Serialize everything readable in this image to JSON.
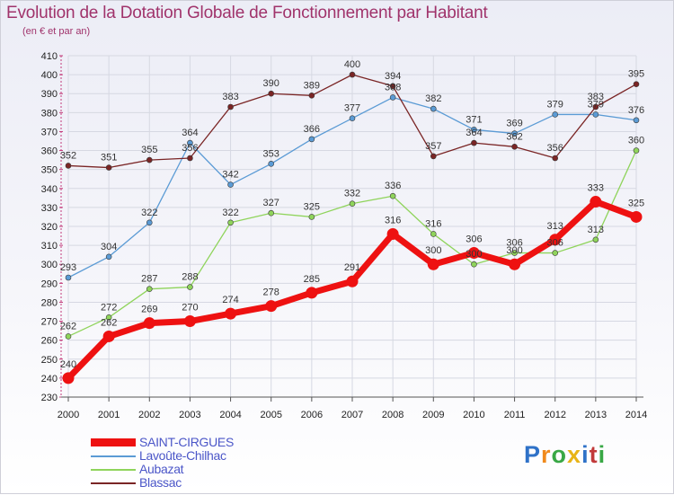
{
  "header": {
    "title": "Evolution de la Dotation Globale de Fonctionnement par Habitant",
    "subtitle": "(en € et par an)"
  },
  "brand": {
    "text": "Proxiti",
    "letter_colors": [
      "#2f72c8",
      "#f08a1c",
      "#39a845",
      "#e8b416",
      "#2f72c8",
      "#c23a3a",
      "#39a845"
    ]
  },
  "chart_data": {
    "type": "line",
    "title": "Evolution de la Dotation Globale de Fonctionnement par Habitant",
    "subtitle": "(en € et par an)",
    "xlabel": "",
    "ylabel": "",
    "x": [
      "2000",
      "2001",
      "2002",
      "2003",
      "2004",
      "2005",
      "2006",
      "2007",
      "2008",
      "2009",
      "2010",
      "2011",
      "2012",
      "2013",
      "2014"
    ],
    "ylim": [
      230,
      410
    ],
    "y_ticks": [
      230,
      240,
      250,
      260,
      270,
      280,
      290,
      300,
      310,
      320,
      330,
      340,
      350,
      360,
      370,
      380,
      390,
      400,
      410
    ],
    "grid": true,
    "legend_position": "bottom-left",
    "series": [
      {
        "name": "SAINT-CIRGUES",
        "color": "#ee1111",
        "emphasis": true,
        "values": [
          240,
          262,
          269,
          270,
          274,
          278,
          285,
          291,
          316,
          300,
          306,
          300,
          313,
          333,
          325
        ]
      },
      {
        "name": "Lavoûte-Chilhac",
        "color": "#5b9bd5",
        "values": [
          293,
          304,
          322,
          364,
          342,
          353,
          366,
          377,
          388,
          382,
          371,
          369,
          379,
          379,
          376
        ]
      },
      {
        "name": "Aubazat",
        "color": "#8fd45b",
        "values": [
          262,
          272,
          287,
          288,
          322,
          327,
          325,
          332,
          336,
          316,
          300,
          306,
          306,
          313,
          360
        ]
      },
      {
        "name": "Blassac",
        "color": "#7a2525",
        "values": [
          352,
          351,
          355,
          356,
          383,
          390,
          389,
          400,
          394,
          357,
          364,
          362,
          356,
          383,
          395
        ]
      }
    ]
  }
}
